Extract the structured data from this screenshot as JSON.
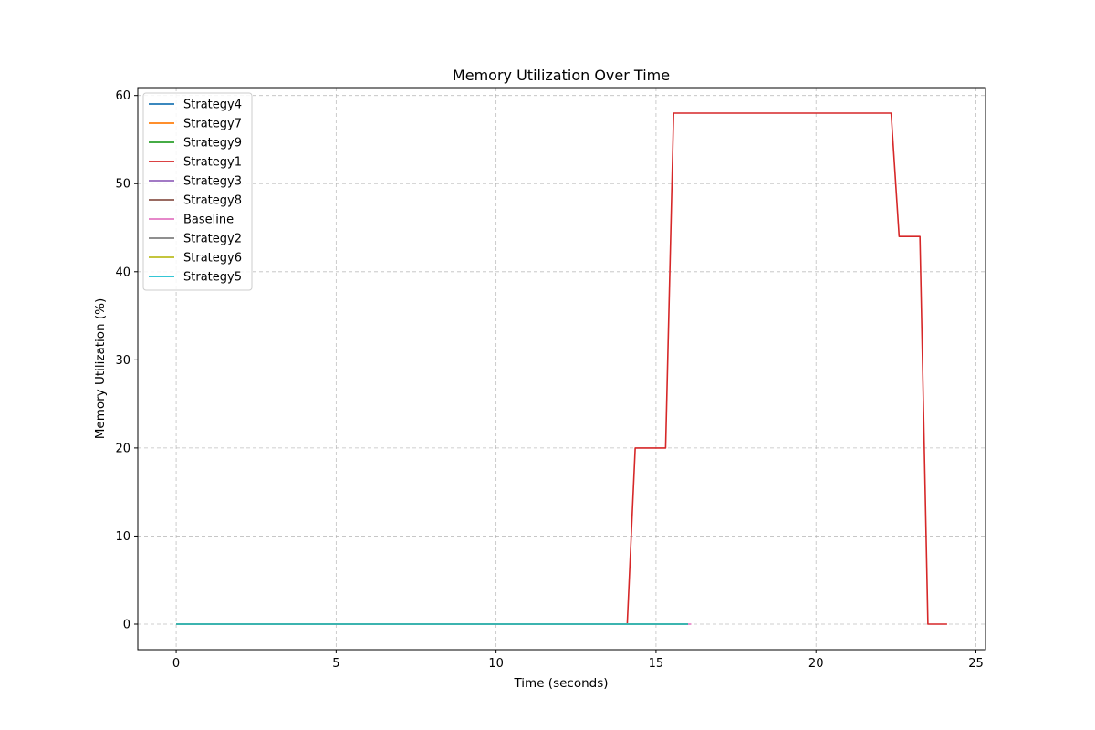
{
  "chart_data": {
    "type": "line",
    "title": "Memory Utilization Over Time",
    "xlabel": "Time (seconds)",
    "ylabel": "Memory Utilization (%)",
    "xlim": [
      -1.2,
      25.3
    ],
    "ylim": [
      -2.9,
      60.9
    ],
    "xticks": [
      0,
      5,
      10,
      15,
      20,
      25
    ],
    "yticks": [
      0,
      10,
      20,
      30,
      40,
      50,
      60
    ],
    "grid": true,
    "legend_position": "upper-left",
    "series": [
      {
        "name": "Strategy4",
        "color": "#1f77b4",
        "x": [
          0,
          16.0
        ],
        "y": [
          0,
          0
        ]
      },
      {
        "name": "Strategy7",
        "color": "#ff7f0e",
        "x": [
          0,
          16.0
        ],
        "y": [
          0,
          0
        ]
      },
      {
        "name": "Strategy9",
        "color": "#2ca02c",
        "x": [
          0,
          16.0
        ],
        "y": [
          0,
          0
        ]
      },
      {
        "name": "Strategy1",
        "color": "#d62728",
        "x": [
          0,
          14.1,
          14.35,
          15.3,
          15.55,
          22.35,
          22.6,
          23.25,
          23.5,
          24.1
        ],
        "y": [
          0,
          0,
          20,
          20,
          58,
          58,
          44,
          44,
          0,
          0
        ]
      },
      {
        "name": "Strategy3",
        "color": "#9467bd",
        "x": [
          0,
          16.0
        ],
        "y": [
          0,
          0
        ]
      },
      {
        "name": "Strategy8",
        "color": "#8c564b",
        "x": [
          0,
          16.0
        ],
        "y": [
          0,
          0
        ]
      },
      {
        "name": "Baseline",
        "color": "#e377c2",
        "x": [
          0,
          16.1
        ],
        "y": [
          0,
          0
        ]
      },
      {
        "name": "Strategy2",
        "color": "#7f7f7f",
        "x": [
          0,
          16.0
        ],
        "y": [
          0,
          0
        ]
      },
      {
        "name": "Strategy6",
        "color": "#bcbd22",
        "x": [
          0,
          16.0
        ],
        "y": [
          0,
          0
        ]
      },
      {
        "name": "Strategy5",
        "color": "#17becf",
        "x": [
          0,
          16.0
        ],
        "y": [
          0,
          0
        ]
      }
    ]
  }
}
